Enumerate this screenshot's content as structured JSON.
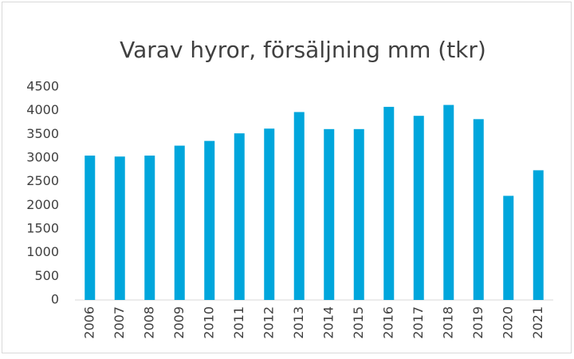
{
  "chart_data": {
    "type": "bar",
    "title": "Varav hyror, försäljning mm (tkr)",
    "categories": [
      "2006",
      "2007",
      "2008",
      "2009",
      "2010",
      "2011",
      "2012",
      "2013",
      "2014",
      "2015",
      "2016",
      "2017",
      "2018",
      "2019",
      "2020",
      "2021"
    ],
    "values": [
      3050,
      3030,
      3050,
      3260,
      3360,
      3520,
      3620,
      3970,
      3610,
      3610,
      4080,
      3890,
      4120,
      3820,
      2200,
      2740
    ],
    "color": "#00a6dc",
    "ylim": [
      0,
      4500
    ],
    "yticks": [
      0,
      500,
      1000,
      1500,
      2000,
      2500,
      3000,
      3500,
      4000,
      4500
    ],
    "grid": false
  }
}
